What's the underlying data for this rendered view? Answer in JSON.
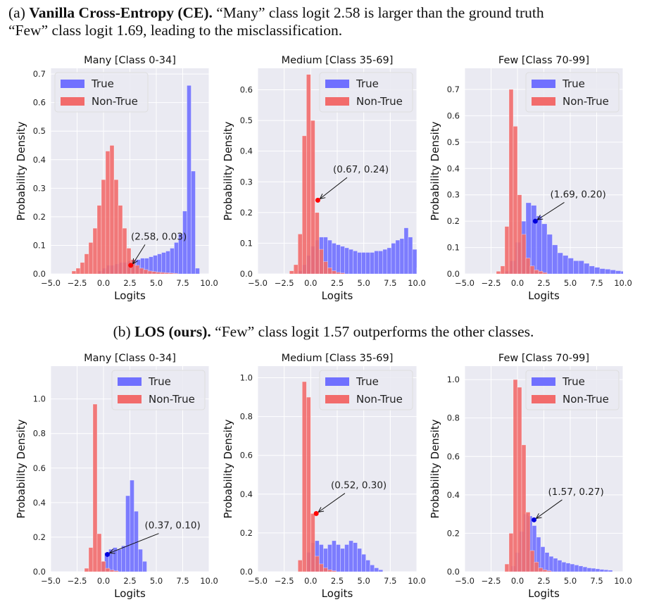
{
  "captions": {
    "a": {
      "prefix": "(a) ",
      "bold": "Vanilla Cross-Entropy (CE).",
      "rest_line1": " “Many” class logit 2.58 is larger than the ground truth",
      "line2": "“Few” class logit 1.69, leading to the misclassification."
    },
    "b": {
      "prefix": "(b) ",
      "bold": "LOS (ours).",
      "rest": " “Few” class logit 1.57 outperforms the other classes."
    }
  },
  "colors": {
    "true": "#7070ff",
    "non_true": "#f26b6b",
    "plot_bg": "#eaeaf2",
    "grid": "#ffffff",
    "marker_red": "#ff0000",
    "marker_blue": "#0000dd"
  },
  "chart_data": [
    {
      "type": "bar",
      "panel": "a",
      "title": "Many [Class 0-34]",
      "xlabel": "Logits",
      "ylabel": "Probability Density",
      "xlim": [
        -5,
        10
      ],
      "ylim": [
        0,
        0.72
      ],
      "xticks": [
        -5,
        -2.5,
        0,
        2.5,
        5,
        7.5,
        10
      ],
      "xtick_labels": [
        "−5.0",
        "−2.5",
        "0.0",
        "2.5",
        "5.0",
        "7.5",
        "10.0"
      ],
      "yticks": [
        0,
        0.1,
        0.2,
        0.3,
        0.4,
        0.5,
        0.6,
        0.7
      ],
      "ytick_labels": [
        "0.0",
        "0.1",
        "0.2",
        "0.3",
        "0.4",
        "0.5",
        "0.6",
        "0.7"
      ],
      "legend": [
        "True",
        "Non-True"
      ],
      "legend_position": "top-left",
      "series": [
        {
          "name": "True",
          "bin_start": -0.5,
          "bin_width": 0.4,
          "values": [
            0.01,
            0.02,
            0.03,
            0.03,
            0.035,
            0.04,
            0.04,
            0.045,
            0.05,
            0.05,
            0.055,
            0.055,
            0.06,
            0.065,
            0.07,
            0.075,
            0.08,
            0.09,
            0.11,
            0.14,
            0.22,
            0.66,
            0.36,
            0.02
          ]
        },
        {
          "name": "Non-True",
          "bin_start": -3.0,
          "bin_width": 0.4,
          "values": [
            0.01,
            0.02,
            0.04,
            0.07,
            0.11,
            0.16,
            0.24,
            0.33,
            0.43,
            0.45,
            0.33,
            0.24,
            0.16,
            0.09,
            0.05,
            0.03,
            0.02,
            0.015,
            0.01,
            0.008,
            0.006,
            0.005,
            0.004,
            0.003,
            0.002
          ]
        }
      ],
      "marker": {
        "x": 2.58,
        "y": 0.03,
        "label": "(2.58, 0.03)",
        "series": "Non-True",
        "text_at": [
          2.6,
          0.12
        ]
      }
    },
    {
      "type": "bar",
      "panel": "a",
      "title": "Medium [Class 35-69]",
      "xlabel": "Logits",
      "ylabel": "Probability Density",
      "xlim": [
        -5,
        10
      ],
      "ylim": [
        0,
        0.67
      ],
      "xticks": [
        -5,
        -2.5,
        0,
        2.5,
        5,
        7.5,
        10
      ],
      "xtick_labels": [
        "−5.0",
        "−2.5",
        "0.0",
        "2.5",
        "5.0",
        "7.5",
        "10.0"
      ],
      "yticks": [
        0,
        0.1,
        0.2,
        0.3,
        0.4,
        0.5,
        0.6
      ],
      "ytick_labels": [
        "0.0",
        "0.1",
        "0.2",
        "0.3",
        "0.4",
        "0.5",
        "0.6"
      ],
      "legend": [
        "True",
        "Non-True"
      ],
      "legend_position": "top-right",
      "series": [
        {
          "name": "True",
          "bin_start": -1.2,
          "bin_width": 0.4,
          "values": [
            0.01,
            0.03,
            0.06,
            0.09,
            0.11,
            0.12,
            0.12,
            0.11,
            0.1,
            0.095,
            0.09,
            0.085,
            0.08,
            0.075,
            0.07,
            0.07,
            0.07,
            0.07,
            0.075,
            0.075,
            0.08,
            0.085,
            0.1,
            0.11,
            0.115,
            0.15,
            0.12,
            0.08,
            0.02
          ]
        },
        {
          "name": "Non-True",
          "bin_start": -2.0,
          "bin_width": 0.4,
          "values": [
            0.01,
            0.03,
            0.13,
            0.45,
            0.65,
            0.5,
            0.2,
            0.08,
            0.04,
            0.02,
            0.01,
            0.005,
            0.003
          ]
        }
      ],
      "marker": {
        "x": 0.67,
        "y": 0.24,
        "label": "(0.67, 0.24)",
        "series": "Non-True",
        "text_at": [
          2.1,
          0.33
        ]
      }
    },
    {
      "type": "bar",
      "panel": "a",
      "title": "Few [Class 70-99]",
      "xlabel": "Logits",
      "ylabel": "Probability Density",
      "xlim": [
        -5,
        10
      ],
      "ylim": [
        0,
        0.78
      ],
      "xticks": [
        -5,
        -2.5,
        0,
        2.5,
        5,
        7.5,
        10
      ],
      "xtick_labels": [
        "−5.0",
        "−2.5",
        "0.0",
        "2.5",
        "5.0",
        "7.5",
        "10.0"
      ],
      "yticks": [
        0,
        0.1,
        0.2,
        0.3,
        0.4,
        0.5,
        0.6,
        0.7
      ],
      "ytick_labels": [
        "0.0",
        "0.1",
        "0.2",
        "0.3",
        "0.4",
        "0.5",
        "0.6",
        "0.7"
      ],
      "legend": [
        "True",
        "Non-True"
      ],
      "legend_position": "top-right",
      "series": [
        {
          "name": "True",
          "bin_start": -1.2,
          "bin_width": 0.5,
          "values": [
            0.01,
            0.05,
            0.12,
            0.2,
            0.27,
            0.26,
            0.22,
            0.19,
            0.15,
            0.11,
            0.08,
            0.07,
            0.06,
            0.05,
            0.05,
            0.04,
            0.03,
            0.025,
            0.02,
            0.018,
            0.015,
            0.012,
            0.01,
            0.008
          ]
        },
        {
          "name": "Non-True",
          "bin_start": -2.0,
          "bin_width": 0.4,
          "values": [
            0.01,
            0.03,
            0.18,
            0.7,
            0.56,
            0.3,
            0.15,
            0.06,
            0.03,
            0.015,
            0.01,
            0.005
          ]
        }
      ],
      "marker": {
        "x": 1.69,
        "y": 0.2,
        "label": "(1.69, 0.20)",
        "series": "True",
        "text_at": [
          3.1,
          0.29
        ]
      }
    },
    {
      "type": "bar",
      "panel": "b",
      "title": "Many [Class 0-34]",
      "xlabel": "Logits",
      "ylabel": "Probability Density",
      "xlim": [
        -5,
        10
      ],
      "ylim": [
        0,
        1.19
      ],
      "xticks": [
        -5,
        -2.5,
        0,
        2.5,
        5,
        7.5,
        10
      ],
      "xtick_labels": [
        "−5.0",
        "−2.5",
        "0.0",
        "2.5",
        "5.0",
        "7.5",
        "10.0"
      ],
      "yticks": [
        0,
        0.2,
        0.4,
        0.6,
        0.8,
        1.0
      ],
      "ytick_labels": [
        "0.0",
        "0.2",
        "0.4",
        "0.6",
        "0.8",
        "1.0"
      ],
      "legend": [
        "True",
        "Non-True"
      ],
      "legend_position": "top-right",
      "series": [
        {
          "name": "True",
          "bin_start": -0.3,
          "bin_width": 0.4,
          "values": [
            0.06,
            0.11,
            0.13,
            0.14,
            0.13,
            0.15,
            0.44,
            0.53,
            0.35,
            0.13,
            0.06
          ]
        },
        {
          "name": "Non-True",
          "bin_start": -1.8,
          "bin_width": 0.4,
          "values": [
            0.02,
            0.14,
            0.97,
            0.22,
            0.06,
            0.02,
            0.01,
            0.005
          ]
        }
      ],
      "marker": {
        "x": 0.37,
        "y": 0.1,
        "label": "(0.37, 0.10)",
        "series": "True",
        "text_at": [
          3.9,
          0.25
        ]
      }
    },
    {
      "type": "bar",
      "panel": "b",
      "title": "Medium [Class 35-69]",
      "xlabel": "Logits",
      "ylabel": "Probability Density",
      "xlim": [
        -5,
        10
      ],
      "ylim": [
        0,
        1.06
      ],
      "xticks": [
        -5,
        -2.5,
        0,
        2.5,
        5,
        7.5,
        10
      ],
      "xtick_labels": [
        "−5.0",
        "−2.5",
        "0.0",
        "2.5",
        "5.0",
        "7.5",
        "10.0"
      ],
      "yticks": [
        0,
        0.2,
        0.4,
        0.6,
        0.8,
        1.0
      ],
      "ytick_labels": [
        "0.0",
        "0.2",
        "0.4",
        "0.6",
        "0.8",
        "1.0"
      ],
      "legend": [
        "True",
        "Non-True"
      ],
      "legend_position": "top-right",
      "series": [
        {
          "name": "True",
          "bin_start": -0.4,
          "bin_width": 0.4,
          "values": [
            0.1,
            0.15,
            0.16,
            0.14,
            0.12,
            0.14,
            0.16,
            0.14,
            0.12,
            0.14,
            0.16,
            0.15,
            0.12,
            0.09,
            0.06,
            0.035,
            0.02,
            0.01
          ]
        },
        {
          "name": "Non-True",
          "bin_start": -1.2,
          "bin_width": 0.4,
          "values": [
            0.06,
            0.98,
            0.9,
            0.3,
            0.08,
            0.04,
            0.02,
            0.01,
            0.005
          ]
        }
      ],
      "marker": {
        "x": 0.52,
        "y": 0.3,
        "label": "(0.52, 0.30)",
        "series": "Non-True",
        "text_at": [
          1.9,
          0.43
        ]
      }
    },
    {
      "type": "bar",
      "panel": "b",
      "title": "Few [Class 70-99]",
      "xlabel": "Logits",
      "ylabel": "Probability Density",
      "xlim": [
        -5,
        10
      ],
      "ylim": [
        0,
        1.07
      ],
      "xticks": [
        -5,
        -2.5,
        0,
        2.5,
        5,
        7.5,
        10
      ],
      "xtick_labels": [
        "−5.0",
        "−2.5",
        "0.0",
        "2.5",
        "5.0",
        "7.5",
        "10.0"
      ],
      "yticks": [
        0,
        0.2,
        0.4,
        0.6,
        0.8,
        1.0
      ],
      "ytick_labels": [
        "0.0",
        "0.2",
        "0.4",
        "0.6",
        "0.8",
        "1.0"
      ],
      "legend": [
        "True",
        "Non-True"
      ],
      "legend_position": "top-right",
      "series": [
        {
          "name": "True",
          "bin_start": -0.6,
          "bin_width": 0.4,
          "values": [
            0.03,
            0.1,
            0.21,
            0.3,
            0.29,
            0.24,
            0.18,
            0.13,
            0.1,
            0.08,
            0.07,
            0.06,
            0.05,
            0.045,
            0.04,
            0.035,
            0.03,
            0.025,
            0.02,
            0.018,
            0.015,
            0.012,
            0.01,
            0.008
          ]
        },
        {
          "name": "Non-True",
          "bin_start": -1.2,
          "bin_width": 0.4,
          "values": [
            0.04,
            0.2,
            1.0,
            0.96,
            0.66,
            0.31,
            0.11,
            0.05,
            0.02,
            0.01,
            0.005
          ]
        }
      ],
      "marker": {
        "x": 1.57,
        "y": 0.27,
        "label": "(1.57, 0.27)",
        "series": "True",
        "text_at": [
          2.9,
          0.4
        ]
      }
    }
  ]
}
